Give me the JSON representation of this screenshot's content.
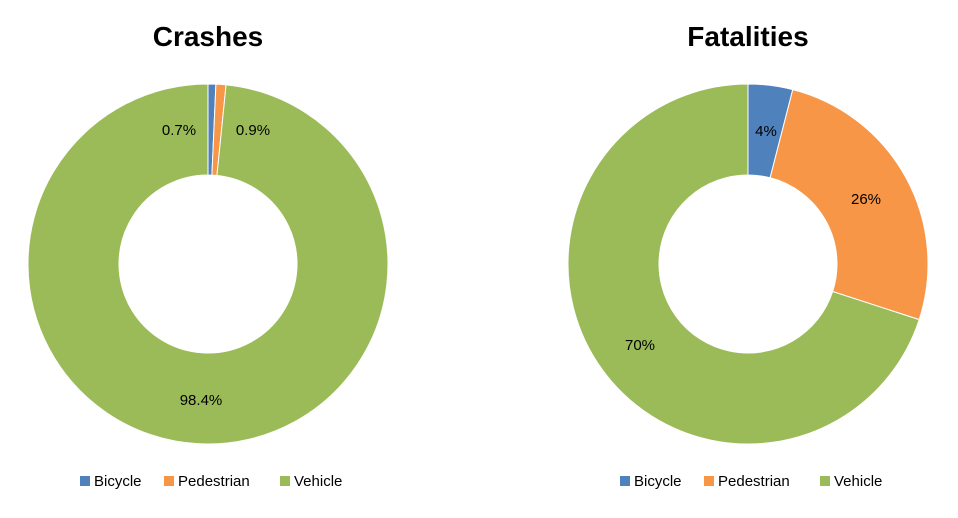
{
  "chart_data": [
    {
      "type": "pie",
      "title": "Crashes",
      "categories": [
        "Bicycle",
        "Pedestrian",
        "Vehicle"
      ],
      "values": [
        0.7,
        0.9,
        98.4
      ],
      "labels": [
        "0.7%",
        "0.9%",
        "98.4%"
      ],
      "colors": [
        "#4F81BD",
        "#F79646",
        "#9BBB59"
      ],
      "legend": "bottom"
    },
    {
      "type": "pie",
      "title": "Fatalities",
      "categories": [
        "Bicycle",
        "Pedestrian",
        "Vehicle"
      ],
      "values": [
        4,
        26,
        70
      ],
      "labels": [
        "4%",
        "26%",
        "70%"
      ],
      "colors": [
        "#4F81BD",
        "#F79646",
        "#9BBB59"
      ],
      "legend": "bottom"
    }
  ]
}
